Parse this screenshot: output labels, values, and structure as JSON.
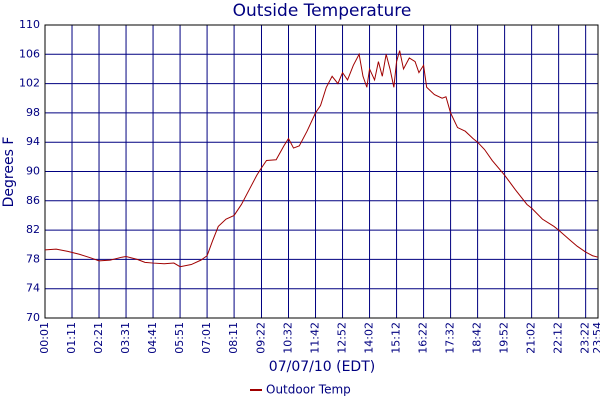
{
  "chart_data": {
    "type": "line",
    "title": "Outside Temperature",
    "x_label": "07/07/10 (EDT)",
    "y_label": "Degrees F",
    "x": [
      1,
      30,
      60,
      90,
      120,
      141,
      170,
      200,
      211,
      240,
      260,
      281,
      310,
      335,
      351,
      380,
      405,
      421,
      435,
      450,
      470,
      491,
      510,
      530,
      550,
      562,
      575,
      600,
      620,
      632,
      645,
      660,
      680,
      702,
      715,
      730,
      745,
      760,
      772,
      785,
      800,
      815,
      825,
      835,
      842,
      855,
      865,
      875,
      885,
      895,
      905,
      912,
      920,
      930,
      945,
      960,
      970,
      982,
      990,
      1010,
      1030,
      1040,
      1052,
      1070,
      1090,
      1110,
      1122,
      1140,
      1160,
      1192,
      1220,
      1250,
      1262,
      1290,
      1320,
      1332,
      1360,
      1380,
      1402,
      1420,
      1434
    ],
    "series": [
      {
        "name": "Outdoor Temp",
        "color": "#a00000",
        "values": [
          79.3,
          79.4,
          79.1,
          78.7,
          78.2,
          77.8,
          77.9,
          78.3,
          78.4,
          78.0,
          77.6,
          77.5,
          77.4,
          77.5,
          77.0,
          77.3,
          77.9,
          78.5,
          80.5,
          82.5,
          83.5,
          84.0,
          85.5,
          87.5,
          89.5,
          90.5,
          91.5,
          91.6,
          93.5,
          94.5,
          93.2,
          93.5,
          95.5,
          98,
          99,
          101.5,
          103,
          102,
          103.5,
          102.5,
          104.5,
          106,
          103,
          101.5,
          104,
          102.5,
          105,
          103,
          106,
          104,
          101.5,
          105,
          106.5,
          104,
          105.5,
          105,
          103.5,
          104.5,
          101.5,
          100.5,
          100,
          100.2,
          98,
          96,
          95.5,
          94.5,
          94,
          93,
          91.5,
          89.5,
          87.5,
          85.5,
          85,
          83.5,
          82.5,
          82,
          80.7,
          79.8,
          79,
          78.5,
          78.3
        ]
      }
    ],
    "xlim": [
      1,
      1434
    ],
    "xticks": [
      {
        "value": 1,
        "label": "00:01"
      },
      {
        "value": 71,
        "label": "01:11"
      },
      {
        "value": 141,
        "label": "02:21"
      },
      {
        "value": 211,
        "label": "03:31"
      },
      {
        "value": 281,
        "label": "04:41"
      },
      {
        "value": 351,
        "label": "05:51"
      },
      {
        "value": 421,
        "label": "07:01"
      },
      {
        "value": 491,
        "label": "08:11"
      },
      {
        "value": 562,
        "label": "09:22"
      },
      {
        "value": 632,
        "label": "10:32"
      },
      {
        "value": 702,
        "label": "11:42"
      },
      {
        "value": 772,
        "label": "12:52"
      },
      {
        "value": 842,
        "label": "14:02"
      },
      {
        "value": 912,
        "label": "15:12"
      },
      {
        "value": 982,
        "label": "16:22"
      },
      {
        "value": 1052,
        "label": "17:32"
      },
      {
        "value": 1122,
        "label": "18:42"
      },
      {
        "value": 1192,
        "label": "19:52"
      },
      {
        "value": 1262,
        "label": "21:02"
      },
      {
        "value": 1332,
        "label": "22:12"
      },
      {
        "value": 1402,
        "label": "23:22"
      },
      {
        "value": 1434,
        "label": "23:54"
      }
    ],
    "ylim": [
      70,
      110
    ],
    "yticks": [
      70,
      74,
      78,
      82,
      86,
      90,
      94,
      98,
      102,
      106,
      110
    ],
    "grid": true,
    "grid_color": "#000080",
    "legend": "bottom"
  }
}
